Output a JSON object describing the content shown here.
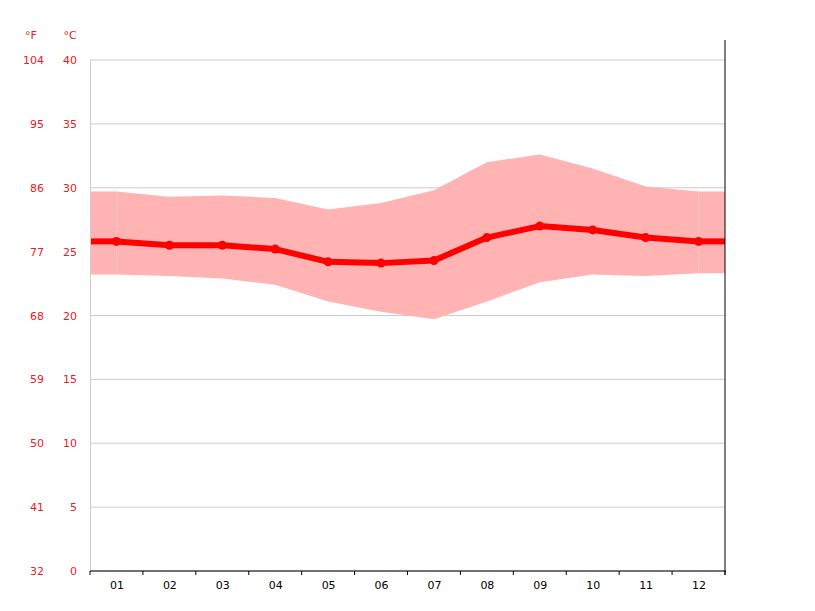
{
  "chart_data": {
    "type": "line",
    "categories": [
      "01",
      "02",
      "03",
      "04",
      "05",
      "06",
      "07",
      "08",
      "09",
      "10",
      "11",
      "12"
    ],
    "ylabel": "°C",
    "y2label": "°F",
    "ylim": [
      0,
      40
    ],
    "yticks": [
      0,
      5,
      10,
      15,
      20,
      25,
      30,
      35,
      40
    ],
    "y2lim": [
      32,
      104
    ],
    "y2ticks": [
      32,
      41,
      50,
      59,
      68,
      77,
      86,
      95,
      104
    ],
    "grid": true,
    "series": [
      {
        "type": "area",
        "color": "#ffb3b3",
        "low": [
          23.2,
          23.1,
          22.9,
          22.4,
          21.1,
          20.3,
          19.7,
          21.1,
          22.6,
          23.2,
          23.1,
          23.3
        ],
        "high": [
          29.7,
          29.3,
          29.4,
          29.2,
          28.3,
          28.8,
          29.8,
          32.0,
          32.6,
          31.5,
          30.1,
          29.7
        ]
      },
      {
        "type": "line",
        "color": "#ff0000",
        "marker": "circle",
        "values": [
          25.8,
          25.5,
          25.5,
          25.2,
          24.2,
          24.1,
          24.3,
          26.1,
          27.0,
          26.7,
          26.1,
          25.8
        ]
      }
    ]
  }
}
